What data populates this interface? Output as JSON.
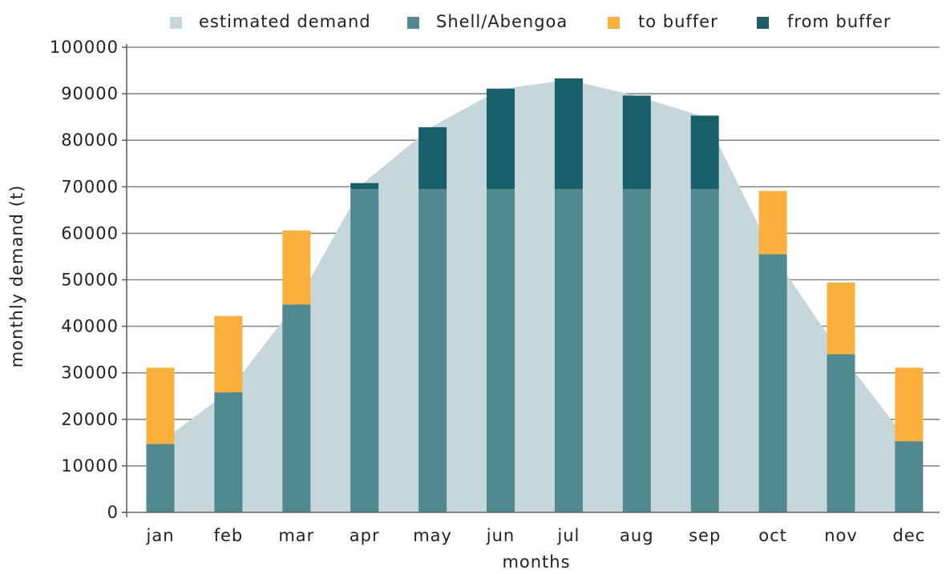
{
  "chart_data": {
    "type": "bar",
    "xlabel": "months",
    "ylabel": "monthly demand (t)",
    "ylim": [
      0,
      100000
    ],
    "yticks": [
      0,
      10000,
      20000,
      30000,
      40000,
      50000,
      60000,
      70000,
      80000,
      90000,
      100000
    ],
    "categories": [
      "jan",
      "feb",
      "mar",
      "apr",
      "may",
      "jun",
      "jul",
      "aug",
      "sep",
      "oct",
      "nov",
      "dec"
    ],
    "grid": true,
    "legend_position": "top",
    "area": {
      "name": "estimated demand",
      "values": [
        15000,
        26000,
        45000,
        71000,
        83000,
        91000,
        93000,
        89500,
        85000,
        55500,
        34000,
        15000
      ]
    },
    "series": [
      {
        "name": "Shell/Abengoa",
        "values": [
          14700,
          25800,
          44700,
          69500,
          69500,
          69500,
          69500,
          69500,
          69500,
          55500,
          34000,
          15300
        ]
      },
      {
        "name": "to buffer",
        "values": [
          16400,
          16400,
          15900,
          0,
          0,
          0,
          0,
          0,
          0,
          13600,
          15400,
          15800
        ]
      },
      {
        "name": "from buffer",
        "values": [
          0,
          0,
          0,
          1300,
          13300,
          21600,
          23800,
          20100,
          15800,
          0,
          0,
          0
        ]
      }
    ],
    "colors": {
      "estimated demand": "#c5d7da",
      "Shell/Abengoa": "#508990",
      "to buffer": "#fbb03b",
      "from buffer": "#17606a",
      "grid": "#888888",
      "axis": "#666666"
    }
  }
}
